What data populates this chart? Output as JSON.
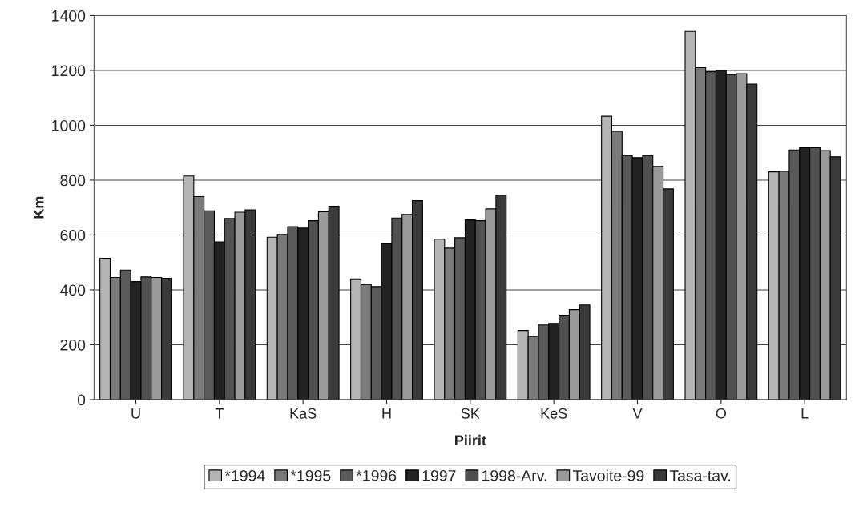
{
  "chart_data": {
    "type": "bar",
    "xlabel": "Piirit",
    "ylabel": "Km",
    "categories": [
      "U",
      "T",
      "KaS",
      "H",
      "SK",
      "KeS",
      "V",
      "O",
      "L"
    ],
    "series": [
      {
        "name": "*1994",
        "color": "#b4b4b4",
        "values": [
          515,
          815,
          592,
          440,
          585,
          252,
          1033,
          1342,
          830
        ]
      },
      {
        "name": "*1995",
        "color": "#7a7a7a",
        "values": [
          445,
          740,
          602,
          420,
          552,
          230,
          978,
          1210,
          832
        ]
      },
      {
        "name": "*1996",
        "color": "#5a5a5a",
        "values": [
          472,
          688,
          630,
          412,
          590,
          272,
          890,
          1195,
          910
        ]
      },
      {
        "name": "1997",
        "color": "#222222",
        "values": [
          430,
          575,
          625,
          568,
          655,
          278,
          882,
          1200,
          918
        ]
      },
      {
        "name": "1998-Arv.",
        "color": "#505050",
        "values": [
          447,
          660,
          652,
          662,
          652,
          308,
          890,
          1185,
          918
        ]
      },
      {
        "name": "Tavoite-99",
        "color": "#9a9a9a",
        "values": [
          445,
          683,
          685,
          675,
          695,
          328,
          850,
          1188,
          908
        ]
      },
      {
        "name": "Tasa-tav.",
        "color": "#3a3a3a",
        "values": [
          442,
          692,
          705,
          725,
          745,
          345,
          768,
          1150,
          885
        ]
      }
    ],
    "ylim": [
      0,
      1400
    ],
    "yticks": [
      0,
      200,
      400,
      600,
      800,
      1000,
      1200,
      1400
    ],
    "grid": "y",
    "legend": "bottom"
  }
}
